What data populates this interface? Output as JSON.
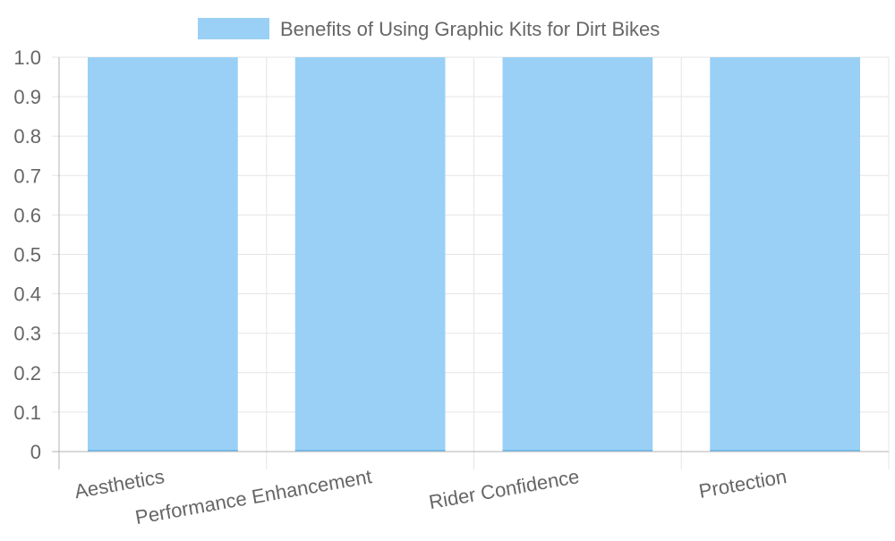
{
  "chart_data": {
    "type": "bar",
    "categories": [
      "Aesthetics",
      "Performance Enhancement",
      "Rider Confidence",
      "Protection"
    ],
    "series": [
      {
        "name": "Benefits of Using Graphic Kits for Dirt Bikes",
        "values": [
          1,
          1,
          1,
          1
        ]
      }
    ],
    "yticks": [
      "0",
      "0.1",
      "0.2",
      "0.3",
      "0.4",
      "0.5",
      "0.6",
      "0.7",
      "0.8",
      "0.9",
      "1.0"
    ],
    "ylim": [
      0,
      1
    ],
    "grid": true,
    "legend": "top",
    "colors": {
      "bar_fill": "#9ad0f5",
      "bar_border": "#36a2eb",
      "grid": "#e5e5e5",
      "axis": "#b3b3b3",
      "text": "#666666"
    }
  }
}
